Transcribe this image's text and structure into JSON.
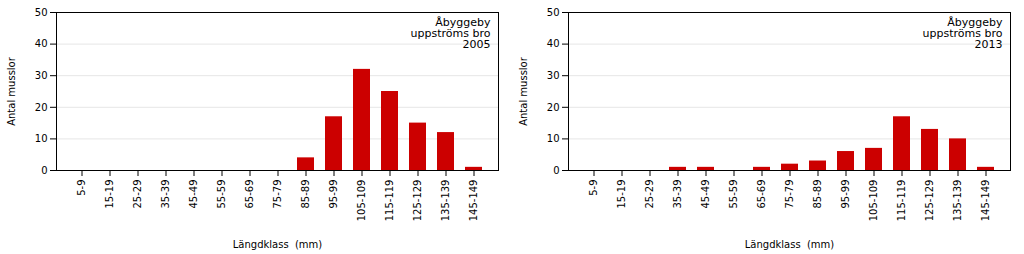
{
  "chart_data": [
    {
      "type": "bar",
      "title": "Åbyggeby\nuppströms bro\n2005",
      "categories": [
        "5-9",
        "15-19",
        "25-29",
        "35-39",
        "45-49",
        "55-59",
        "65-69",
        "75-79",
        "85-89",
        "95-99",
        "105-109",
        "115-119",
        "125-129",
        "135-139",
        "145-149"
      ],
      "values": [
        0,
        0,
        0,
        0,
        0,
        0,
        0,
        0,
        4,
        17,
        32,
        25,
        15,
        12,
        1
      ],
      "color": "#cc0000",
      "xlabel": "Längdklass  (mm)",
      "ylabel": "Antal musslor",
      "ylim": [
        0,
        50
      ],
      "yticks": [
        0,
        10,
        20,
        30,
        40,
        50
      ],
      "grid": true
    },
    {
      "type": "bar",
      "title": "Åbyggeby\nuppströms bro\n2013",
      "categories": [
        "5-9",
        "15-19",
        "25-29",
        "35-39",
        "45-49",
        "55-59",
        "65-69",
        "75-79",
        "85-89",
        "95-99",
        "105-109",
        "115-119",
        "125-129",
        "135-139",
        "145-149"
      ],
      "values": [
        0,
        0,
        0,
        1,
        1,
        0,
        1,
        2,
        3,
        6,
        7,
        17,
        13,
        10,
        1
      ],
      "color": "#cc0000",
      "xlabel": "Längdklass  (mm)",
      "ylabel": "Antal musslor",
      "ylim": [
        0,
        50
      ],
      "yticks": [
        0,
        10,
        20,
        30,
        40,
        50
      ],
      "grid": true
    }
  ]
}
